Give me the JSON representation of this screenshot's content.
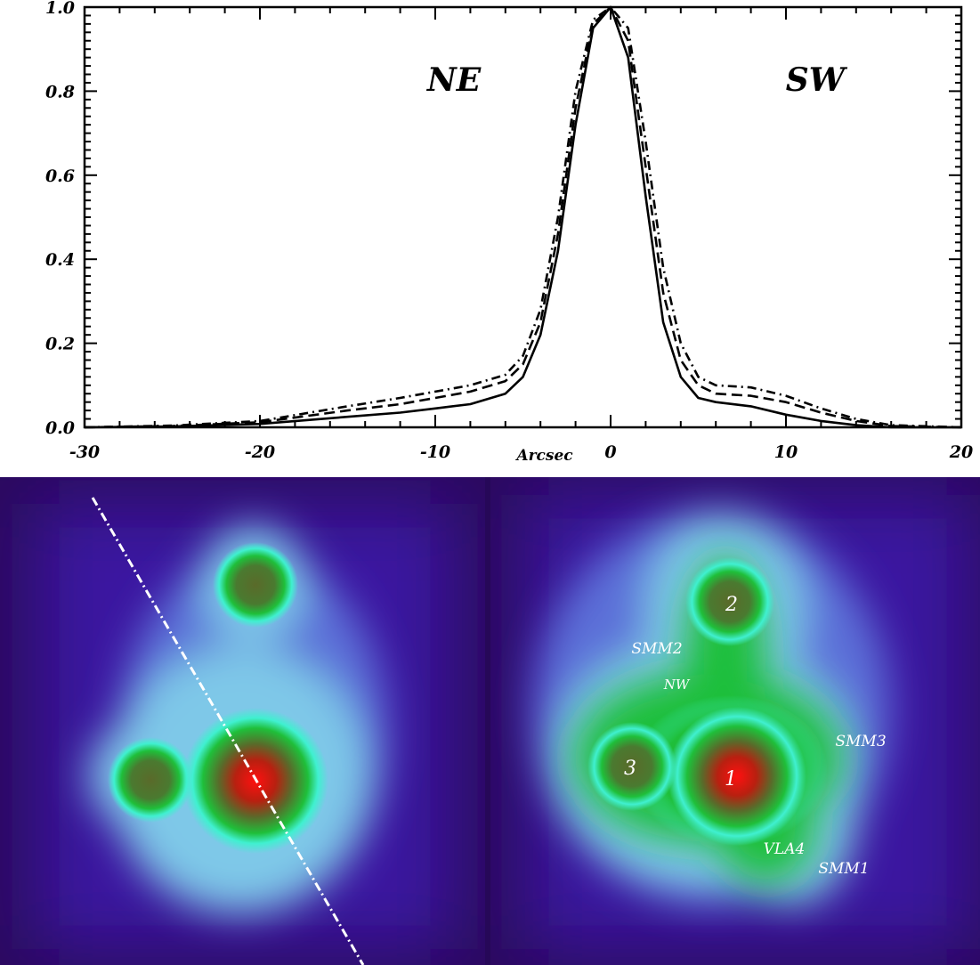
{
  "chart_data": {
    "type": "line",
    "title": "",
    "xlabel": "Arcsec",
    "ylabel": "",
    "xlim": [
      -30,
      20
    ],
    "ylim": [
      0.0,
      1.0
    ],
    "x_ticks": [
      "-30",
      "-20",
      "-10",
      "0",
      "10",
      "20"
    ],
    "y_ticks": [
      "0.0",
      "0.2",
      "0.4",
      "0.6",
      "0.8",
      "1.0"
    ],
    "annotations": [
      "NE",
      "SW"
    ],
    "grid": false,
    "legend": "none",
    "series": [
      {
        "style": "solid",
        "x": [
          -30,
          -25,
          -20,
          -15,
          -12,
          -10,
          -8,
          -6,
          -5,
          -4,
          -3,
          -2,
          -1,
          0,
          1,
          2,
          3,
          4,
          5,
          6,
          8,
          10,
          12,
          14,
          16,
          20
        ],
        "values": [
          0.0,
          0.002,
          0.008,
          0.025,
          0.035,
          0.045,
          0.055,
          0.08,
          0.12,
          0.22,
          0.42,
          0.72,
          0.95,
          1.0,
          0.88,
          0.55,
          0.25,
          0.12,
          0.07,
          0.06,
          0.05,
          0.03,
          0.015,
          0.005,
          0.0,
          0.0
        ]
      },
      {
        "style": "dashed",
        "x": [
          -30,
          -25,
          -20,
          -15,
          -12,
          -10,
          -8,
          -6,
          -5,
          -4,
          -3,
          -2,
          -1,
          0,
          1,
          2,
          3,
          4,
          5,
          6,
          8,
          10,
          12,
          14,
          16,
          20
        ],
        "values": [
          0.0,
          0.003,
          0.012,
          0.04,
          0.055,
          0.07,
          0.085,
          0.11,
          0.15,
          0.25,
          0.46,
          0.76,
          0.96,
          1.0,
          0.92,
          0.62,
          0.32,
          0.16,
          0.1,
          0.08,
          0.075,
          0.06,
          0.035,
          0.015,
          0.003,
          0.0
        ]
      },
      {
        "style": "dash-dot",
        "x": [
          -30,
          -25,
          -20,
          -15,
          -12,
          -10,
          -8,
          -6,
          -5,
          -4,
          -3,
          -2,
          -1,
          0,
          1,
          2,
          3,
          4,
          5,
          6,
          8,
          10,
          12,
          14,
          16,
          20
        ],
        "values": [
          0.0,
          0.004,
          0.015,
          0.05,
          0.07,
          0.085,
          0.1,
          0.125,
          0.17,
          0.28,
          0.5,
          0.8,
          0.97,
          1.0,
          0.95,
          0.68,
          0.38,
          0.2,
          0.12,
          0.1,
          0.095,
          0.075,
          0.045,
          0.02,
          0.005,
          0.0
        ]
      }
    ]
  },
  "map_labels": {
    "left_map": [],
    "right_map": [
      "2",
      "SMM2",
      "NW",
      "3",
      "1",
      "SMM3",
      "VLA4",
      "SMM1"
    ]
  },
  "colors": {
    "background_dark": "#2a0a5e",
    "field": "#3a16a0",
    "halo": "#7ec8e8",
    "cyan": "#40f0d0",
    "green": "#1fbf3a",
    "olive": "#5a6a2a",
    "red": "#d01010",
    "cut_line": "#ffffff"
  }
}
